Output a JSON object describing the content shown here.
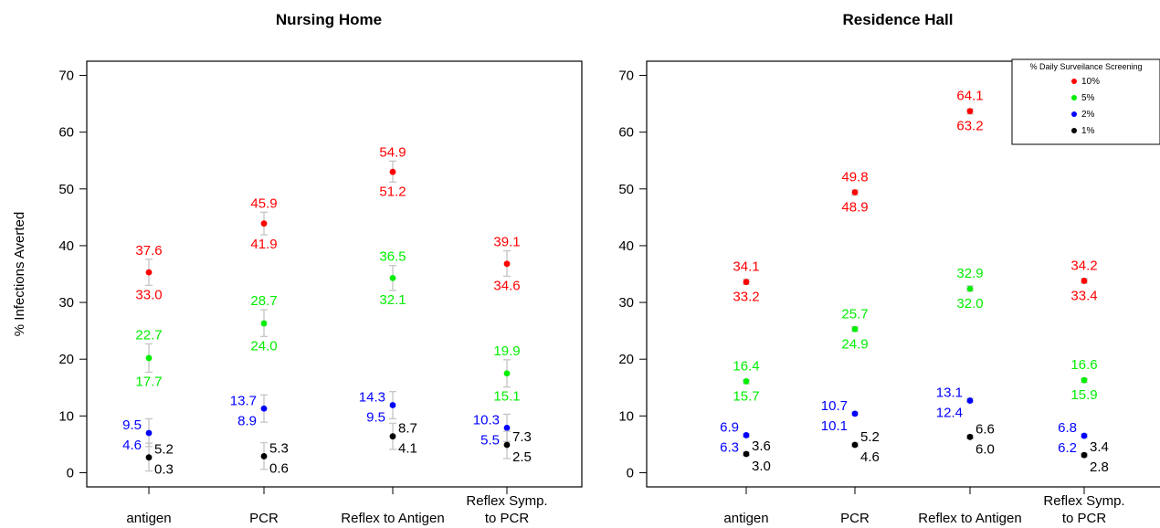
{
  "chart_data": [
    {
      "type": "scatter",
      "title": "Nursing Home",
      "ylabel": "% Infections Averted",
      "ylim": [
        -2.5,
        72.5
      ],
      "yticks": [
        0,
        10,
        20,
        30,
        40,
        50,
        60,
        70
      ],
      "categories": [
        "antigen",
        "PCR",
        "Reflex to Antigen",
        "Reflex Symp. to PCR"
      ],
      "series": [
        {
          "name": "10%",
          "color": "#ff0000",
          "points": [
            {
              "y": 35.3,
              "upper": 37.6,
              "lower": 33.0
            },
            {
              "y": 43.9,
              "upper": 45.9,
              "lower": 41.9
            },
            {
              "y": 53.0,
              "upper": 54.9,
              "lower": 51.2
            },
            {
              "y": 36.8,
              "upper": 39.1,
              "lower": 34.6
            }
          ]
        },
        {
          "name": "5%",
          "color": "#00ee00",
          "points": [
            {
              "y": 20.2,
              "upper": 22.7,
              "lower": 17.7
            },
            {
              "y": 26.3,
              "upper": 28.7,
              "lower": 24.0
            },
            {
              "y": 34.3,
              "upper": 36.5,
              "lower": 32.1
            },
            {
              "y": 17.5,
              "upper": 19.9,
              "lower": 15.1
            }
          ]
        },
        {
          "name": "2%",
          "color": "#0000ff",
          "points": [
            {
              "y": 7.0,
              "upper": 9.5,
              "lower": 4.6
            },
            {
              "y": 11.3,
              "upper": 13.7,
              "lower": 8.9
            },
            {
              "y": 11.9,
              "upper": 14.3,
              "lower": 9.5
            },
            {
              "y": 7.9,
              "upper": 10.3,
              "lower": 5.5
            }
          ]
        },
        {
          "name": "1%",
          "color": "#000000",
          "points": [
            {
              "y": 2.7,
              "upper": 5.2,
              "lower": 0.3
            },
            {
              "y": 2.9,
              "upper": 5.3,
              "lower": 0.6
            },
            {
              "y": 6.4,
              "upper": 8.7,
              "lower": 4.1
            },
            {
              "y": 4.9,
              "upper": 7.3,
              "lower": 2.5
            }
          ]
        }
      ]
    },
    {
      "type": "scatter",
      "title": "Residence Hall",
      "ylabel": "",
      "ylim": [
        -2.5,
        72.5
      ],
      "yticks": [
        0,
        10,
        20,
        30,
        40,
        50,
        60,
        70
      ],
      "categories": [
        "antigen",
        "PCR",
        "Reflex to Antigen",
        "Reflex Symp. to PCR"
      ],
      "legend": {
        "title": "% Daily Surveilance Screening",
        "placement": "top-right",
        "entries": [
          "10%",
          "5%",
          "2%",
          "1%"
        ]
      },
      "series": [
        {
          "name": "10%",
          "color": "#ff0000",
          "points": [
            {
              "y": 33.6,
              "upper": 34.1,
              "lower": 33.2
            },
            {
              "y": 49.4,
              "upper": 49.8,
              "lower": 48.9
            },
            {
              "y": 63.7,
              "upper": 64.1,
              "lower": 63.2
            },
            {
              "y": 33.8,
              "upper": 34.2,
              "lower": 33.4
            }
          ]
        },
        {
          "name": "5%",
          "color": "#00ee00",
          "points": [
            {
              "y": 16.1,
              "upper": 16.4,
              "lower": 15.7
            },
            {
              "y": 25.3,
              "upper": 25.7,
              "lower": 24.9
            },
            {
              "y": 32.4,
              "upper": 32.9,
              "lower": 32.0
            },
            {
              "y": 16.3,
              "upper": 16.6,
              "lower": 15.9
            }
          ]
        },
        {
          "name": "2%",
          "color": "#0000ff",
          "points": [
            {
              "y": 6.6,
              "upper": 6.9,
              "lower": 6.3
            },
            {
              "y": 10.4,
              "upper": 10.7,
              "lower": 10.1
            },
            {
              "y": 12.7,
              "upper": 13.1,
              "lower": 12.4
            },
            {
              "y": 6.5,
              "upper": 6.8,
              "lower": 6.2
            }
          ]
        },
        {
          "name": "1%",
          "color": "#000000",
          "points": [
            {
              "y": 3.3,
              "upper": 3.6,
              "lower": 3.0
            },
            {
              "y": 4.9,
              "upper": 5.2,
              "lower": 4.6
            },
            {
              "y": 6.3,
              "upper": 6.6,
              "lower": 6.0
            },
            {
              "y": 3.1,
              "upper": 3.4,
              "lower": 2.8
            }
          ]
        }
      ]
    }
  ]
}
